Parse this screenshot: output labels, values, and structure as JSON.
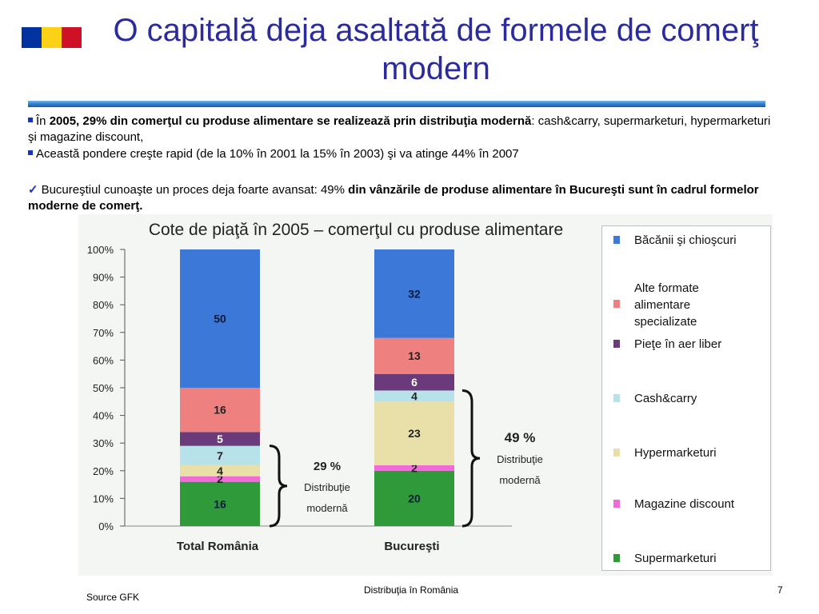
{
  "slide": {
    "title": "O capitală deja asaltată de formele de comerţ modern",
    "flag_colors": [
      "#0033a0",
      "#fcd116",
      "#ce1126"
    ],
    "accent": "#2b2b9b"
  },
  "body": {
    "p1": {
      "prefix": "În ",
      "bold": "2005, 29% din comerţul cu produse alimentare se realizează prin distribuţia modernă",
      "suffix": ":  cash&carry, supermarketuri, hypermarketuri şi magazine discount,"
    },
    "p2": "Această pondere creşte rapid (de la 10% în 2001 la 15% în 2003) şi va atinge 44% în 2007",
    "p3": {
      "prefix": "Bucureştiul cunoaşte un proces deja foarte avansat:  49% ",
      "bold": "din vânzările de produse alimentare în Bucureşti sunt în cadrul formelor moderne de comerţ."
    }
  },
  "chart_data": {
    "type": "bar",
    "stacked": true,
    "title": "Cote de piaţă în 2005 – comerţul cu produse alimentare",
    "categories": [
      "Total România",
      "Bucureşti"
    ],
    "ylim": [
      0,
      100
    ],
    "yticks": [
      "0%",
      "10%",
      "20%",
      "30%",
      "40%",
      "50%",
      "60%",
      "70%",
      "80%",
      "90%",
      "100%"
    ],
    "series": [
      {
        "name": "Supermarketuri",
        "color": "#2e9a3a",
        "values": [
          16,
          20
        ]
      },
      {
        "name": "Magazine discount",
        "color": "#f06ad8",
        "values": [
          2,
          2
        ]
      },
      {
        "name": "Hypermarketuri",
        "color": "#e8e0a8",
        "values": [
          4,
          23
        ]
      },
      {
        "name": "Cash&carry",
        "color": "#b8e2ea",
        "values": [
          7,
          4
        ]
      },
      {
        "name": "Pieţe în aer liber",
        "color": "#6a3a7a",
        "values": [
          5,
          6
        ]
      },
      {
        "name": "Alte formate alimentare specializate",
        "color": "#ef8080",
        "values": [
          16,
          13
        ]
      },
      {
        "name": "Băcănii şi chioşcuri",
        "color": "#3b78d8",
        "values": [
          50,
          32
        ]
      }
    ],
    "legend_order": [
      "Băcănii şi chioşcuri",
      "Alte formate alimentare specializate",
      "Pieţe în aer liber",
      "Cash&carry",
      "Hypermarketuri",
      "Magazine discount",
      "Supermarketuri"
    ],
    "annotations": [
      {
        "category": "Total România",
        "percent": "29 %",
        "label_line1": "Distribuţie",
        "label_line2": "modernă"
      },
      {
        "category": "Bucureşti",
        "percent": "49 %",
        "label_line1": "Distribuţie",
        "label_line2": "modernă"
      }
    ]
  },
  "footer": {
    "source": "Source GFK",
    "center": "Distribuţia în România",
    "page": "7"
  }
}
